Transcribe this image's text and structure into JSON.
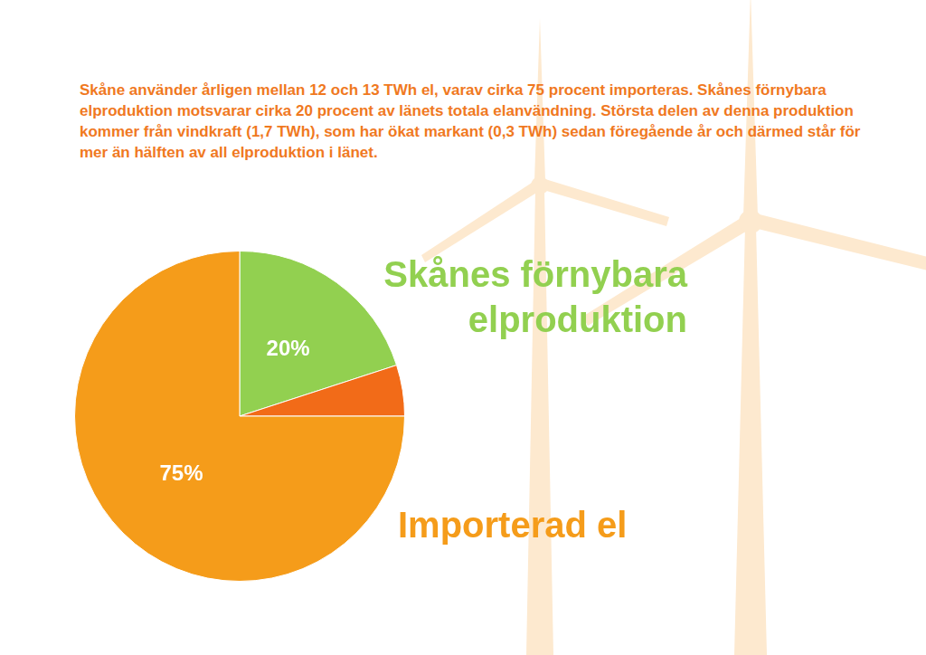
{
  "chart_data": {
    "type": "pie",
    "annotation": "Skåne använder årligen mellan 12 och 13 TWh el, varav cirka 75 procent importeras. Skånes förnybara elproduktion motsvarar cirka 20 procent av länets totala elanvändning. Största delen av denna produktion kommer från vindkraft (1,7 TWh), som har ökat markant (0,3 TWh) sedan föregående år och därmed står för mer än hälften av all elproduktion i länet.",
    "categories": [
      "Skånes förnybara elproduktion",
      null,
      "Importerad el"
    ],
    "values": [
      20,
      5,
      75
    ],
    "colors": [
      "#92d050",
      "#f26b18",
      "#f59c1a"
    ],
    "data_labels": true,
    "value_labels": [
      "20%",
      null,
      "75%"
    ]
  }
}
